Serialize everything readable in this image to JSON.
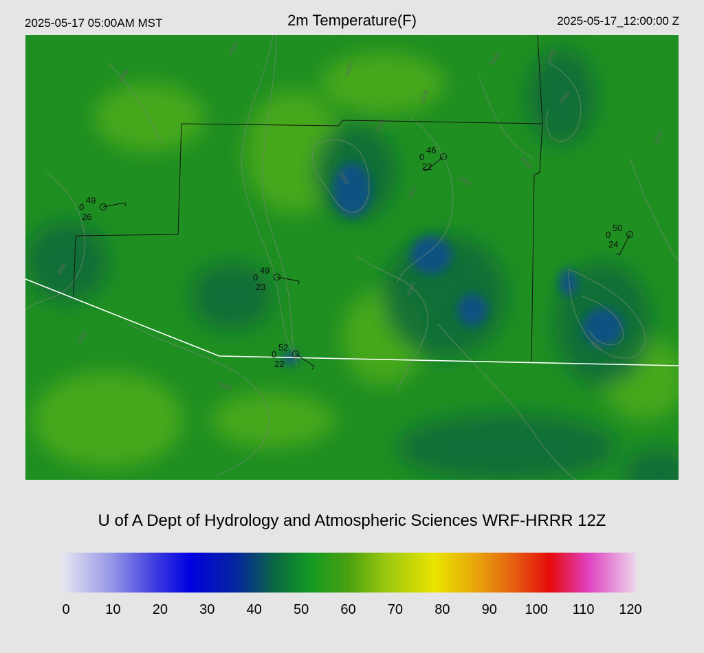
{
  "header": {
    "local_time": "2025-05-17 05:00AM MST",
    "title": "2m Temperature(F)",
    "utc_time": "2025-05-17_12:00:00 Z"
  },
  "credit": "U of A Dept of Hydrology and Atmospheric Sciences WRF-HRRR 12Z",
  "colorbar": {
    "ticks": [
      "0",
      "10",
      "20",
      "30",
      "40",
      "50",
      "60",
      "70",
      "80",
      "90",
      "100",
      "110",
      "120"
    ],
    "min": 0,
    "max": 120,
    "stops": [
      {
        "v": 0,
        "c": "#e8e8f2"
      },
      {
        "v": 10,
        "c": "#9c9ce8"
      },
      {
        "v": 20,
        "c": "#3a3ae0"
      },
      {
        "v": 27,
        "c": "#0000e0"
      },
      {
        "v": 37,
        "c": "#06289a"
      },
      {
        "v": 45,
        "c": "#0a6a40"
      },
      {
        "v": 52,
        "c": "#139a24"
      },
      {
        "v": 60,
        "c": "#4aa010"
      },
      {
        "v": 68,
        "c": "#9cc810"
      },
      {
        "v": 78,
        "c": "#ebe400"
      },
      {
        "v": 88,
        "c": "#e79a0c"
      },
      {
        "v": 95,
        "c": "#e55a10"
      },
      {
        "v": 102,
        "c": "#e50a0a"
      },
      {
        "v": 110,
        "c": "#e040c0"
      },
      {
        "v": 120,
        "c": "#ecd6ec"
      }
    ]
  },
  "map_colors": {
    "base": "#1f8f22",
    "cool": "#0c6a3a",
    "cold": "#124f8a",
    "warm": "#4fae16",
    "border": "#141414",
    "state_line": "#ffffff",
    "contour": "#6f8a6f"
  },
  "contour_labels": [
    "4000",
    "4500",
    "5000",
    "5500",
    "6000",
    "7000",
    "5000",
    "4500",
    "5000",
    "5500",
    "5000",
    "5500",
    "4500",
    "5000",
    "5500",
    "4500",
    "5000",
    "6000"
  ],
  "stations": [
    {
      "temp": "49",
      "code": "0",
      "dew": "26"
    },
    {
      "temp": "46",
      "code": "0",
      "dew": "22"
    },
    {
      "temp": "50",
      "code": "0",
      "dew": "24"
    },
    {
      "temp": "49",
      "code": "0",
      "dew": "23"
    },
    {
      "temp": "52",
      "code": "0",
      "dew": "22"
    }
  ]
}
